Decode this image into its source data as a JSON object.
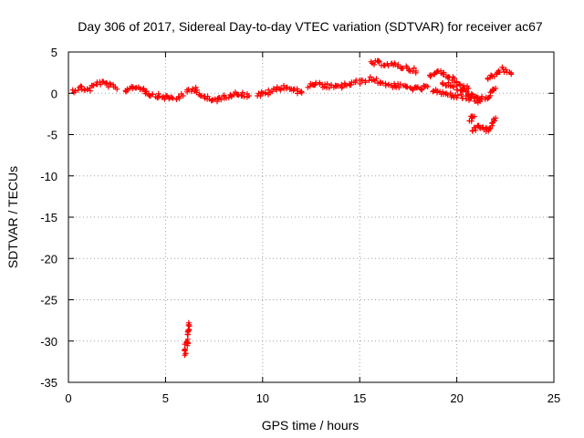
{
  "chart_data": {
    "type": "scatter",
    "title": "Day 306 of 2017, Sidereal Day-to-day VTEC variation (SDTVAR) for receiver ac67",
    "xlabel": "GPS time / hours",
    "ylabel": "SDTVAR / TECUs",
    "xlim": [
      0,
      25
    ],
    "ylim": [
      -35,
      5
    ],
    "xticks": [
      0,
      5,
      10,
      15,
      20,
      25
    ],
    "yticks": [
      5,
      0,
      -5,
      -10,
      -15,
      -20,
      -25,
      -30,
      -35
    ],
    "grid": true,
    "marker": "plus",
    "series": [
      {
        "name": "SDTVAR",
        "color": "#ff0000",
        "segments": [
          {
            "x": [
              0.2,
              0.6,
              1.0,
              1.5,
              2.0,
              2.5
            ],
            "y": [
              0.3,
              0.7,
              0.4,
              1.3,
              1.1,
              0.5
            ]
          },
          {
            "x": [
              2.9,
              3.3,
              3.8,
              4.2,
              4.6,
              5.0,
              5.5,
              5.9
            ],
            "y": [
              0.3,
              0.8,
              0.6,
              -0.1,
              -0.3,
              -0.5,
              -0.6,
              -0.3
            ]
          },
          {
            "x": [
              6.1,
              6.5,
              7.0,
              7.4,
              7.8,
              8.3,
              8.8,
              9.3
            ],
            "y": [
              0.1,
              0.6,
              -0.5,
              -0.9,
              -0.6,
              -0.2,
              0.0,
              -0.3
            ]
          },
          {
            "x": [
              9.7,
              10.2,
              10.7,
              11.2,
              11.7,
              12.0
            ],
            "y": [
              -0.2,
              0.0,
              0.5,
              0.8,
              0.3,
              0.2
            ]
          },
          {
            "x": [
              12.3,
              12.8,
              13.3,
              13.8,
              14.3,
              14.8,
              15.3
            ],
            "y": [
              0.9,
              1.1,
              0.9,
              0.7,
              1.0,
              1.3,
              1.5
            ]
          },
          {
            "x": [
              15.5,
              16.0,
              16.5,
              17.0,
              17.5,
              18.0,
              18.5
            ],
            "y": [
              1.8,
              1.4,
              1.0,
              0.9,
              0.7,
              0.5,
              0.8
            ]
          },
          {
            "x": [
              15.6,
              16.0,
              16.5,
              17.0,
              17.5,
              17.9
            ],
            "y": [
              3.6,
              3.7,
              3.5,
              3.3,
              3.0,
              2.7
            ]
          },
          {
            "x": [
              18.6,
              19.0,
              19.4,
              19.8,
              20.2,
              20.6
            ],
            "y": [
              1.9,
              2.6,
              2.4,
              1.6,
              1.0,
              0.6
            ]
          },
          {
            "x": [
              19.2,
              19.6,
              20.0,
              20.4,
              20.8,
              21.2,
              21.6,
              22.0
            ],
            "y": [
              1.3,
              1.0,
              0.6,
              0.1,
              -0.3,
              -0.8,
              -0.4,
              0.6
            ]
          },
          {
            "x": [
              18.8,
              19.2,
              19.7,
              20.2,
              20.7,
              21.2
            ],
            "y": [
              0.4,
              0.0,
              -0.2,
              -0.4,
              -0.7,
              -1.0
            ]
          },
          {
            "x": [
              21.6,
              22.0,
              22.4,
              22.8
            ],
            "y": [
              1.5,
              2.3,
              2.9,
              2.3
            ]
          },
          {
            "x": [
              20.8,
              21.1,
              21.4,
              21.7,
              22.0
            ],
            "y": [
              -4.7,
              -3.8,
              -4.5,
              -4.2,
              -3.0
            ]
          },
          {
            "x": [
              20.7,
              20.9
            ],
            "y": [
              -3.2,
              -2.8
            ]
          },
          {
            "x": [
              6.0,
              6.05,
              6.1,
              6.15,
              6.2
            ],
            "y": [
              -31.8,
              -30.8,
              -29.8,
              -28.8,
              -27.8
            ]
          }
        ]
      }
    ]
  }
}
